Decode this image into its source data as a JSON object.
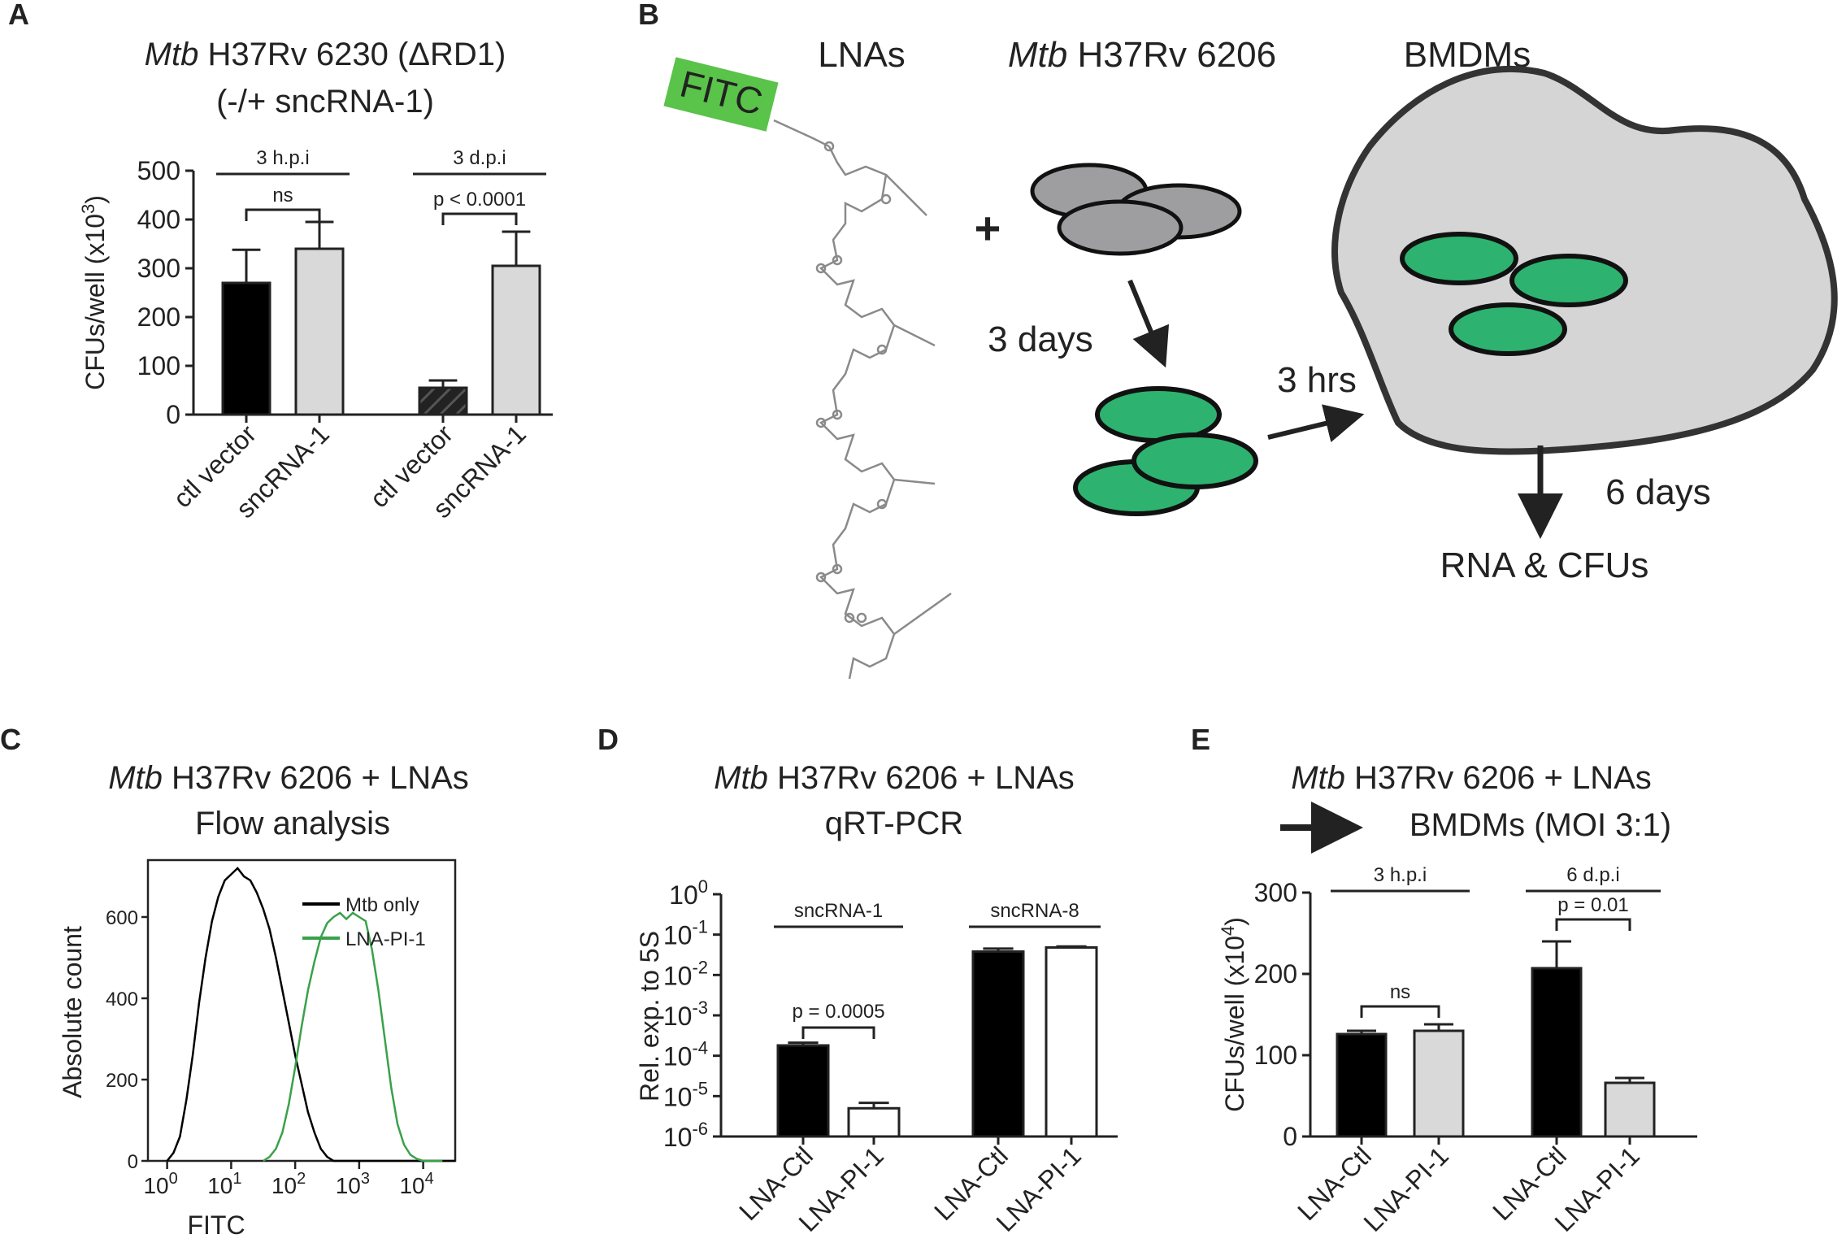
{
  "panels": {
    "A": {
      "letter": "A",
      "title_italic": "Mtb",
      "title_rest": " H37Rv 6230 (ΔRD1)",
      "title_line2": "(-/+ sncRNA-1)"
    },
    "B": {
      "letter": "B",
      "label_lnas": "LNAs",
      "label_mtb_italic": "Mtb",
      "label_mtb_rest": " H37Rv 6206",
      "label_bmdms": "BMDMs",
      "fitc": "FITC",
      "plus": "+",
      "three_days": "3 days",
      "three_hrs": "3 hrs",
      "six_days": "6 days",
      "rna_cfus": "RNA & CFUs"
    },
    "C": {
      "letter": "C",
      "title_italic": "Mtb",
      "title_rest": " H37Rv 6206 + LNAs",
      "title_line2": "Flow analysis"
    },
    "D": {
      "letter": "D",
      "title_italic": "Mtb",
      "title_rest": " H37Rv 6206 + LNAs",
      "title_line2": "qRT-PCR"
    },
    "E": {
      "letter": "E",
      "title_italic": "Mtb",
      "title_rest": " H37Rv 6206 + LNAs",
      "title_line2": "BMDMs (MOI 3:1)"
    }
  },
  "colors": {
    "black": "#000000",
    "light_gray": "#d9d9d9",
    "green": "#2db36f",
    "cell_gray": "#d5d5d5",
    "flow_green": "#3aa14a"
  },
  "chart_data": [
    {
      "id": "A",
      "type": "bar",
      "ylabel_main": "CFUs/well (x10",
      "ylabel_exp": "3",
      "ylabel_end": ")",
      "ylim": [
        0,
        500
      ],
      "yticks": [
        0,
        100,
        200,
        300,
        400,
        500
      ],
      "categories": [
        "ctl vector",
        "sncRNA-1",
        "ctl vector",
        "sncRNA-1"
      ],
      "values": [
        270,
        340,
        55,
        305
      ],
      "errors": [
        68,
        55,
        15,
        70
      ],
      "colors": [
        "#000000",
        "#d9d9d9",
        "hatch",
        "#d9d9d9"
      ],
      "groups": [
        {
          "label": "3 h.p.i",
          "sig": "ns"
        },
        {
          "label": "3 d.p.i",
          "sig": "p < 0.0001"
        }
      ]
    },
    {
      "id": "C",
      "type": "line",
      "xlabel": "FITC",
      "ylabel": "Absolute count",
      "ylim": [
        0,
        700
      ],
      "yticks": [
        0,
        200,
        400,
        600
      ],
      "xtick_bases": [
        "10",
        "10",
        "10",
        "10",
        "10"
      ],
      "xtick_exps": [
        "0",
        "1",
        "2",
        "3",
        "4"
      ],
      "series": [
        {
          "name": "Mtb only",
          "color": "#000000",
          "x": [
            0.0,
            0.1,
            0.2,
            0.3,
            0.4,
            0.5,
            0.6,
            0.7,
            0.8,
            0.9,
            1.0,
            1.1,
            1.2,
            1.3,
            1.4,
            1.5,
            1.6,
            1.7,
            1.8,
            1.9,
            2.0,
            2.1,
            2.2,
            2.3,
            2.4,
            2.5,
            2.6,
            2.7,
            2.8,
            2.9,
            3.0,
            3.1,
            3.2,
            3.3,
            3.4,
            3.5,
            3.6,
            3.7,
            3.8,
            3.9,
            4.0,
            4.1,
            4.2,
            4.3,
            4.4,
            4.5
          ],
          "y": [
            0,
            20,
            60,
            150,
            260,
            390,
            500,
            590,
            650,
            690,
            705,
            720,
            700,
            690,
            660,
            620,
            570,
            500,
            420,
            340,
            260,
            190,
            120,
            70,
            30,
            10,
            0,
            0,
            0,
            0,
            0,
            0,
            0,
            0,
            0,
            0,
            0,
            0,
            0,
            0,
            0,
            0,
            0,
            0,
            0,
            0
          ]
        },
        {
          "name": "LNA-PI-1",
          "color": "#3aa14a",
          "x": [
            1.5,
            1.6,
            1.7,
            1.8,
            1.9,
            2.0,
            2.1,
            2.2,
            2.3,
            2.4,
            2.5,
            2.6,
            2.7,
            2.8,
            2.9,
            3.0,
            3.1,
            3.2,
            3.3,
            3.4,
            3.5,
            3.6,
            3.7,
            3.8,
            3.9,
            4.0,
            4.1,
            4.2,
            4.3
          ],
          "y": [
            0,
            10,
            30,
            70,
            140,
            230,
            330,
            420,
            490,
            550,
            585,
            600,
            610,
            595,
            610,
            600,
            590,
            520,
            420,
            300,
            180,
            90,
            40,
            15,
            5,
            0,
            0,
            0,
            0
          ]
        }
      ]
    },
    {
      "id": "D",
      "type": "bar",
      "ylabel": "Rel. exp. to 5S",
      "scale": "log",
      "ylim_exp": [
        -6,
        0
      ],
      "ytick_exps": [
        "0",
        "-1",
        "-2",
        "-3",
        "-4",
        "-5",
        "-6"
      ],
      "categories": [
        "LNA-Ctl",
        "LNA-PI-1",
        "LNA-Ctl",
        "LNA-PI-1"
      ],
      "values": [
        0.00018,
        5e-06,
        0.038,
        0.048
      ],
      "errors_upper": [
        0.00021,
        6.8e-06,
        0.045,
        0.051
      ],
      "colors": [
        "#000000",
        "#ffffff",
        "#000000",
        "#ffffff"
      ],
      "groups": [
        {
          "label": "sncRNA-1",
          "sig": "p = 0.0005"
        },
        {
          "label": "sncRNA-8",
          "sig": ""
        }
      ]
    },
    {
      "id": "E",
      "type": "bar",
      "ylabel_main": "CFUs/well (x10",
      "ylabel_exp": "4",
      "ylabel_end": ")",
      "ylim": [
        0,
        300
      ],
      "yticks": [
        0,
        100,
        200,
        300
      ],
      "categories": [
        "LNA-Ctl",
        "LNA-PI-1",
        "LNA-Ctl",
        "LNA-PI-1"
      ],
      "values": [
        126,
        130,
        207,
        66
      ],
      "errors": [
        4,
        8,
        33,
        6
      ],
      "colors": [
        "#000000",
        "#d9d9d9",
        "#000000",
        "#d9d9d9"
      ],
      "groups": [
        {
          "label": "3 h.p.i",
          "sig": "ns"
        },
        {
          "label": "6 d.p.i",
          "sig": "p = 0.01"
        }
      ]
    }
  ]
}
